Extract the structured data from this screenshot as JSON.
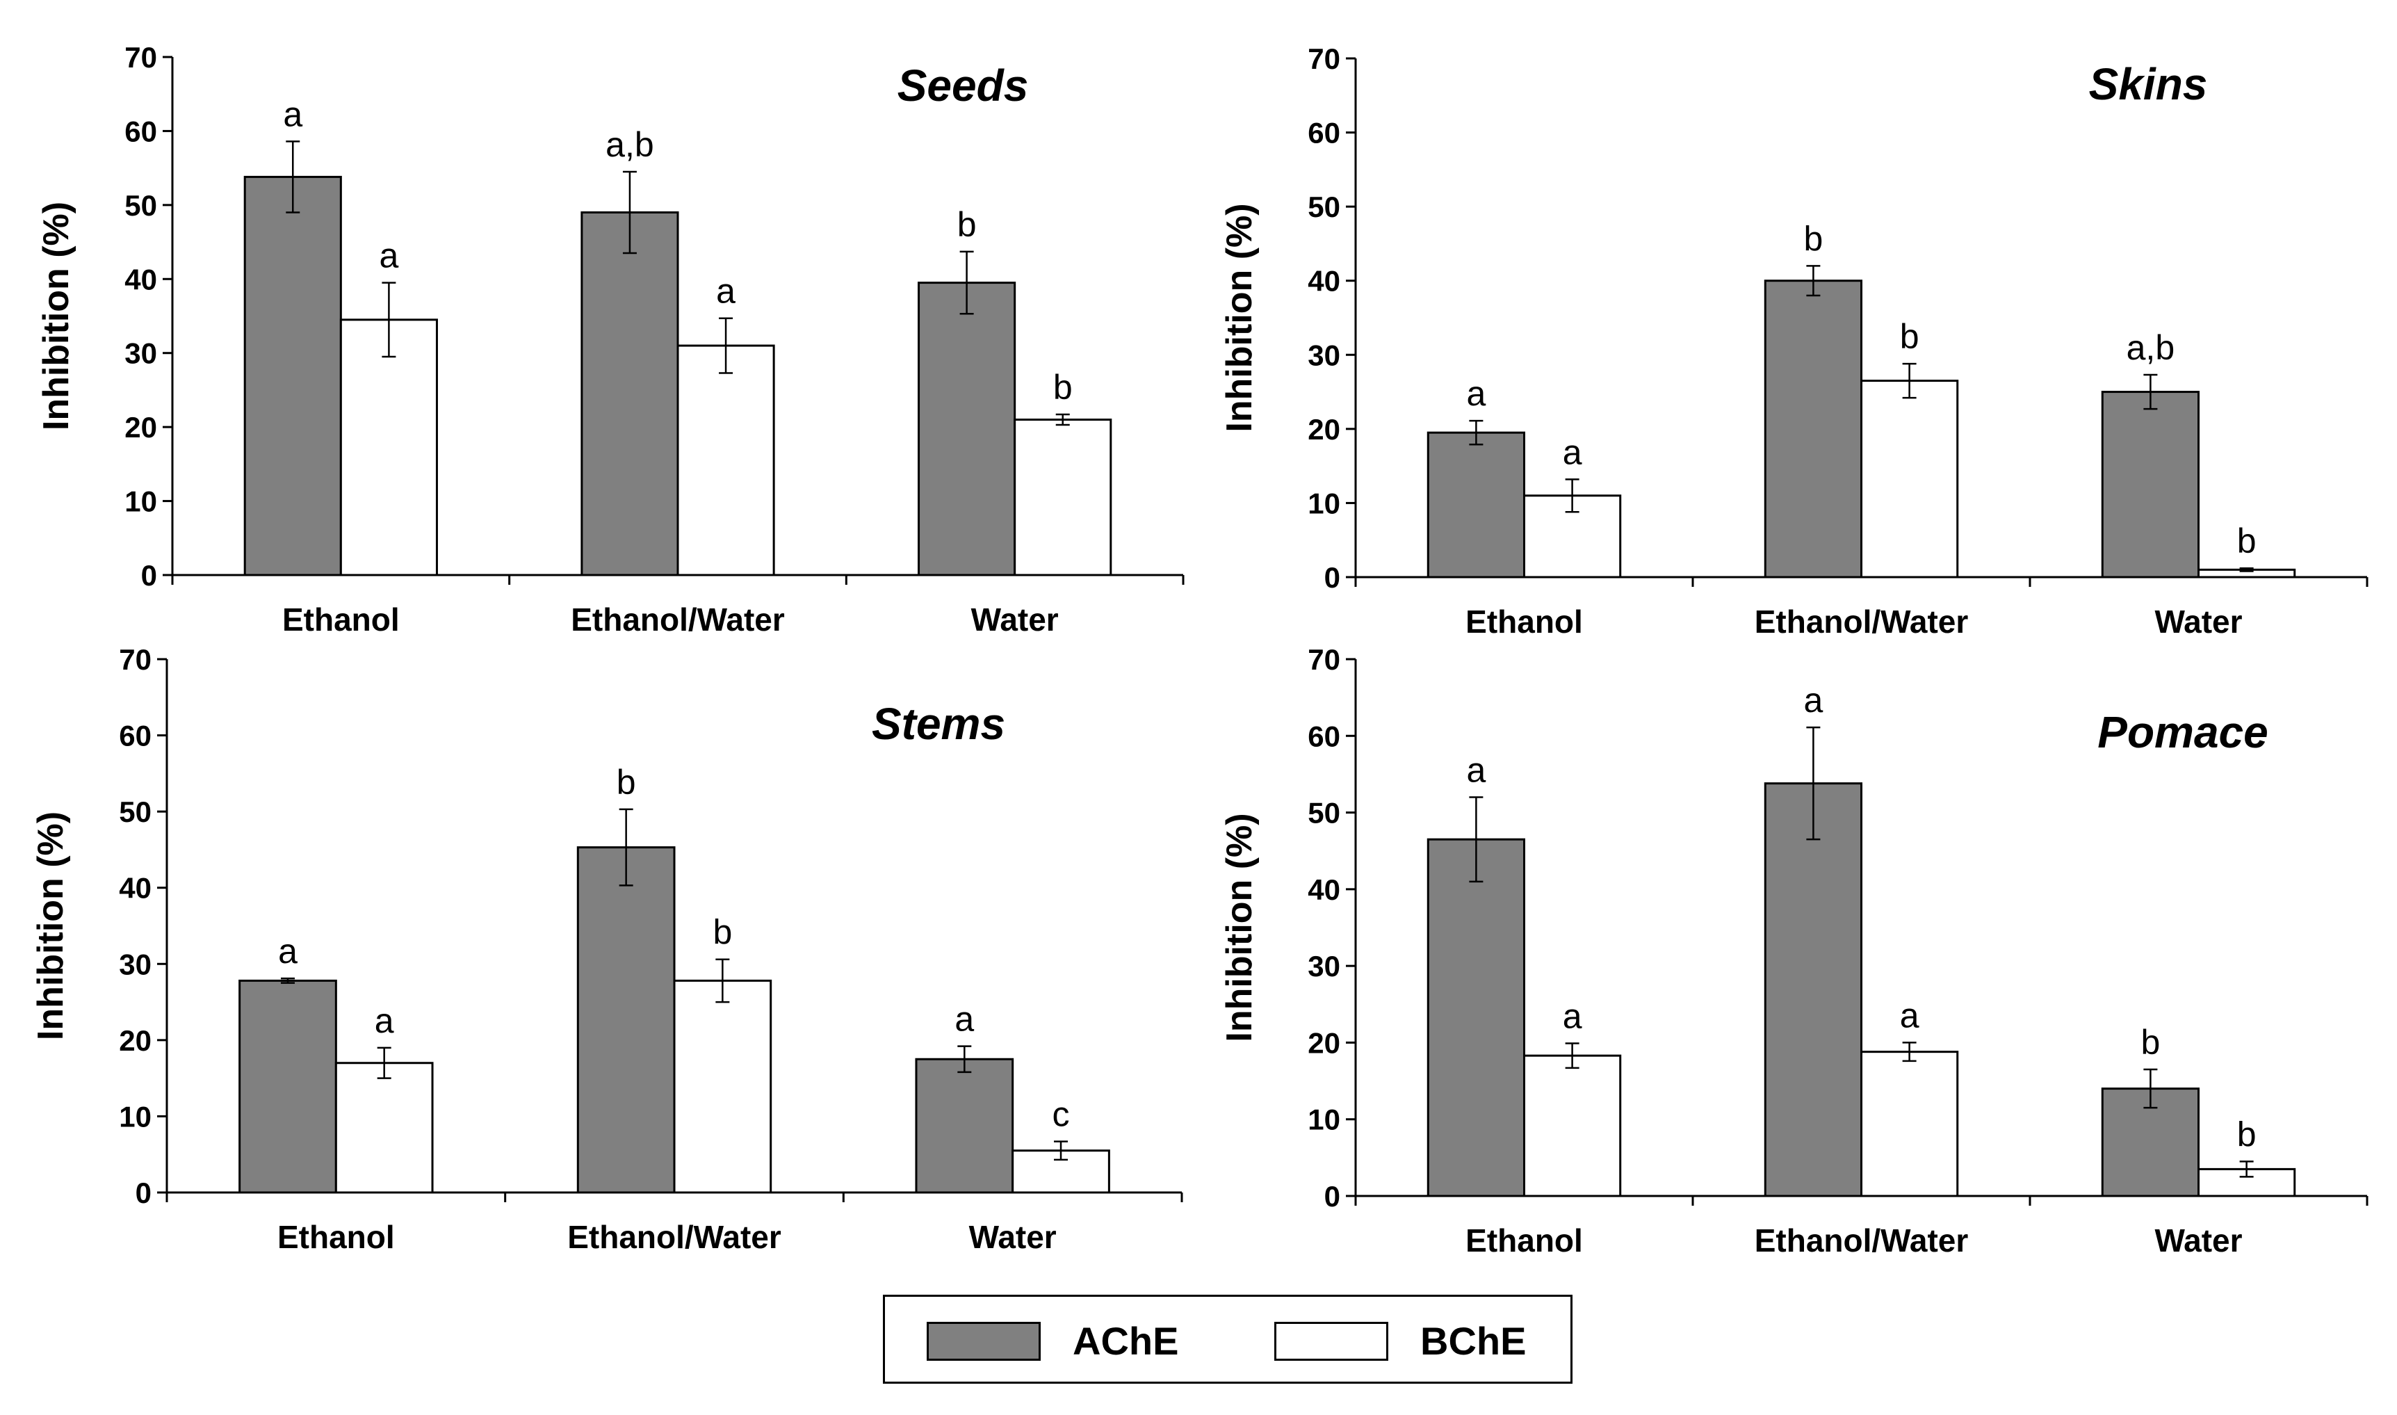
{
  "legend": {
    "items": [
      {
        "name": "AChE",
        "color": "#808080"
      },
      {
        "name": "BChE",
        "color": "#ffffff"
      }
    ]
  },
  "chart_data": [
    {
      "type": "bar",
      "title": "Seeds",
      "ylabel": "Inhibition (%)",
      "ylim": [
        0,
        70
      ],
      "yticks": [
        0,
        10,
        20,
        30,
        40,
        50,
        60,
        70
      ],
      "categories": [
        "Ethanol",
        "Ethanol/Water",
        "Water"
      ],
      "series": [
        {
          "name": "AChE",
          "values": [
            53.8,
            49.0,
            39.5
          ],
          "errors": [
            4.8,
            5.5,
            4.2
          ],
          "labels": [
            "a",
            "a,b",
            "b"
          ]
        },
        {
          "name": "BChE",
          "values": [
            34.5,
            31.0,
            21.0
          ],
          "errors": [
            5.0,
            3.7,
            0.7
          ],
          "labels": [
            "a",
            "a",
            "b"
          ]
        }
      ]
    },
    {
      "type": "bar",
      "title": "Skins",
      "ylabel": "Inhibition (%)",
      "ylim": [
        0,
        70
      ],
      "yticks": [
        0,
        10,
        20,
        30,
        40,
        50,
        60,
        70
      ],
      "categories": [
        "Ethanol",
        "Ethanol/Water",
        "Water"
      ],
      "series": [
        {
          "name": "AChE",
          "values": [
            19.5,
            40.0,
            25.0
          ],
          "errors": [
            1.6,
            2.0,
            2.3
          ],
          "labels": [
            "a",
            "b",
            "a,b"
          ]
        },
        {
          "name": "BChE",
          "values": [
            11.0,
            26.5,
            1.0
          ],
          "errors": [
            2.2,
            2.3,
            0.2
          ],
          "labels": [
            "a",
            "b",
            "b"
          ]
        }
      ]
    },
    {
      "type": "bar",
      "title": "Stems",
      "ylabel": "Inhibition (%)",
      "ylim": [
        0,
        70
      ],
      "yticks": [
        0,
        10,
        20,
        30,
        40,
        50,
        60,
        70
      ],
      "categories": [
        "Ethanol",
        "Ethanol/Water",
        "Water"
      ],
      "series": [
        {
          "name": "AChE",
          "values": [
            27.8,
            45.3,
            17.5
          ],
          "errors": [
            0.3,
            5.0,
            1.7
          ],
          "labels": [
            "a",
            "b",
            "a"
          ]
        },
        {
          "name": "BChE",
          "values": [
            17.0,
            27.8,
            5.5
          ],
          "errors": [
            2.0,
            2.8,
            1.2
          ],
          "labels": [
            "a",
            "b",
            "c"
          ]
        }
      ]
    },
    {
      "type": "bar",
      "title": "Pomace",
      "ylabel": "Inhibition (%)",
      "ylim": [
        0,
        70
      ],
      "yticks": [
        0,
        10,
        20,
        30,
        40,
        50,
        60,
        70
      ],
      "categories": [
        "Ethanol",
        "Ethanol/Water",
        "Water"
      ],
      "series": [
        {
          "name": "AChE",
          "values": [
            46.5,
            53.8,
            14.0
          ],
          "errors": [
            5.5,
            7.3,
            2.5
          ],
          "labels": [
            "a",
            "a",
            "b"
          ]
        },
        {
          "name": "BChE",
          "values": [
            18.3,
            18.8,
            3.5
          ],
          "errors": [
            1.6,
            1.2,
            1.0
          ],
          "labels": [
            "a",
            "a",
            "b"
          ]
        }
      ]
    }
  ]
}
